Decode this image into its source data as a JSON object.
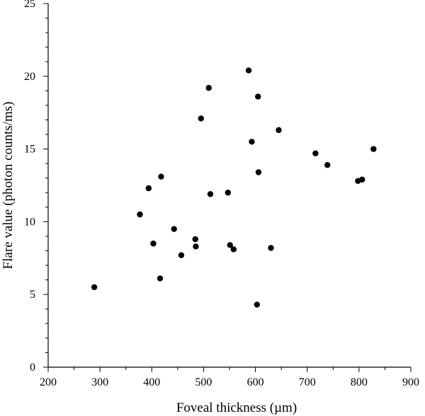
{
  "chart_data": {
    "type": "scatter",
    "title": "",
    "xlabel": "Foveal thickness  (µm)",
    "ylabel": "Flare value (photon counts/ms)",
    "xlim": [
      200,
      900
    ],
    "ylim": [
      0,
      25
    ],
    "xticks": [
      200,
      300,
      400,
      500,
      600,
      700,
      800,
      900
    ],
    "yticks": [
      0,
      5,
      10,
      15,
      20,
      25
    ],
    "grid": false,
    "legend": "none",
    "point_color": "#000000",
    "points": [
      {
        "x": 289,
        "y": 5.5
      },
      {
        "x": 377,
        "y": 10.5
      },
      {
        "x": 394,
        "y": 12.3
      },
      {
        "x": 403,
        "y": 8.5
      },
      {
        "x": 416,
        "y": 6.1
      },
      {
        "x": 418,
        "y": 13.1
      },
      {
        "x": 443,
        "y": 9.5
      },
      {
        "x": 457,
        "y": 7.7
      },
      {
        "x": 484,
        "y": 8.8
      },
      {
        "x": 485,
        "y": 8.3
      },
      {
        "x": 495,
        "y": 17.1
      },
      {
        "x": 510,
        "y": 19.2
      },
      {
        "x": 513,
        "y": 11.9
      },
      {
        "x": 547,
        "y": 12.0
      },
      {
        "x": 551,
        "y": 8.4
      },
      {
        "x": 558,
        "y": 8.1
      },
      {
        "x": 587,
        "y": 20.4
      },
      {
        "x": 593,
        "y": 15.5
      },
      {
        "x": 603,
        "y": 4.3
      },
      {
        "x": 605,
        "y": 18.6
      },
      {
        "x": 606,
        "y": 13.4
      },
      {
        "x": 630,
        "y": 8.2
      },
      {
        "x": 645,
        "y": 16.3
      },
      {
        "x": 716,
        "y": 14.7
      },
      {
        "x": 739,
        "y": 13.9
      },
      {
        "x": 798,
        "y": 12.8
      },
      {
        "x": 806,
        "y": 12.9
      },
      {
        "x": 828,
        "y": 15.0
      }
    ]
  }
}
